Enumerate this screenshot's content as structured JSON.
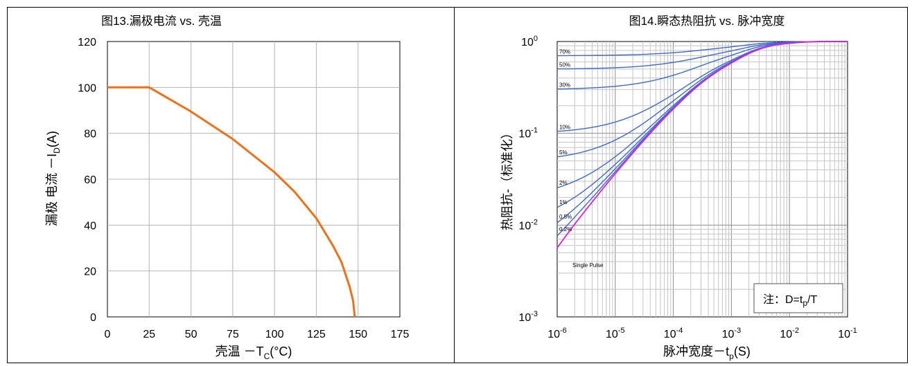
{
  "chart_data": [
    {
      "type": "line",
      "title": "图13.漏极电流 vs. 壳温",
      "xlabel": {
        "main": "壳温 －T",
        "sub": "C",
        "tail": "(°C)"
      },
      "ylabel": {
        "main": "漏极 电流 －I",
        "sub": "D",
        "tail": "(A)"
      },
      "xlim": [
        0,
        175
      ],
      "ylim": [
        0,
        120
      ],
      "xticks": [
        0,
        25,
        50,
        75,
        100,
        125,
        150,
        175
      ],
      "yticks": [
        0,
        20,
        40,
        60,
        80,
        100,
        120
      ],
      "grid": true,
      "series": [
        {
          "color": "#f26f14",
          "x": [
            0,
            25,
            50,
            75,
            100,
            112,
            125,
            135,
            140,
            145,
            147,
            148
          ],
          "y": [
            100,
            100,
            89.5,
            77.5,
            63,
            54.5,
            43,
            31,
            24,
            13,
            7,
            0
          ]
        }
      ]
    },
    {
      "type": "line",
      "title": "图14.瞬态热阻抗 vs. 脉冲宽度",
      "xlabel": {
        "main": "脉冲宽度－t",
        "sub": "p",
        "tail": "(S)"
      },
      "ylabel": "热阻抗-（标准化）",
      "xscale": "log",
      "yscale": "log",
      "xlim": [
        1e-06,
        0.1
      ],
      "ylim": [
        0.001,
        1
      ],
      "xticks": [
        {
          "base": "10",
          "exp": "-6"
        },
        {
          "base": "10",
          "exp": "-5"
        },
        {
          "base": "10",
          "exp": "-4"
        },
        {
          "base": "10",
          "exp": "-3"
        },
        {
          "base": "10",
          "exp": "-2"
        },
        {
          "base": "10",
          "exp": "-1"
        }
      ],
      "yticks": [
        {
          "base": "10",
          "exp": "-3"
        },
        {
          "base": "10",
          "exp": "-2"
        },
        {
          "base": "10",
          "exp": "-1"
        },
        {
          "base": "10",
          "exp": "0"
        }
      ],
      "grid": true,
      "note": {
        "prefix": "注：D=t",
        "sub": "p",
        "suffix": "/T"
      },
      "curve_color": "#3a68d8",
      "single_pulse_color": "#e01ee0",
      "series": [
        {
          "name": "70%",
          "duty": 0.7
        },
        {
          "name": "50%",
          "duty": 0.5
        },
        {
          "name": "30%",
          "duty": 0.3
        },
        {
          "name": "10%",
          "duty": 0.1
        },
        {
          "name": "5%",
          "duty": 0.05
        },
        {
          "name": "2%",
          "duty": 0.02
        },
        {
          "name": "1%",
          "duty": 0.01
        },
        {
          "name": "0.5%",
          "duty": 0.005
        },
        {
          "name": "0.2%",
          "duty": 0.002
        },
        {
          "name": "Single Pulse",
          "duty": 0
        }
      ]
    }
  ]
}
